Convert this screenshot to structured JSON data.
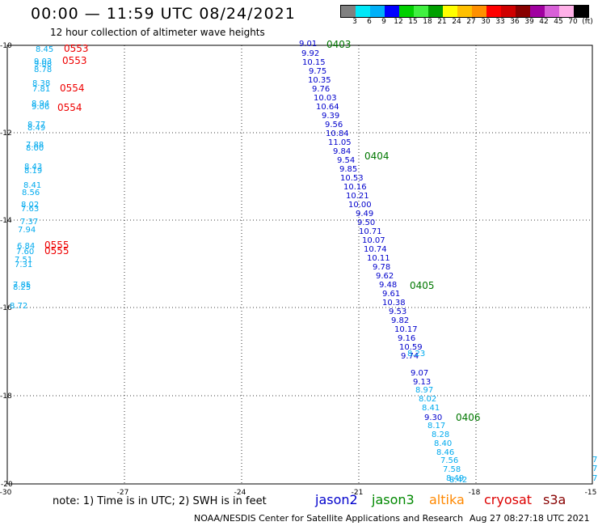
{
  "header": {
    "title": "00:00 — 11:59 UTC 08/24/2021",
    "subtitle": "12 hour collection of altimeter wave heights"
  },
  "colorbar": {
    "colors": [
      "#808080",
      "#00e8f8",
      "#00b0f8",
      "#0000ff",
      "#00d000",
      "#40f040",
      "#00a000",
      "#ffff00",
      "#ffc000",
      "#ff9000",
      "#ff0000",
      "#d00000",
      "#880000",
      "#a000a0",
      "#d860d8",
      "#ffb0e8",
      "#000000"
    ],
    "labels": [
      "3",
      "6",
      "9",
      "12",
      "15",
      "18",
      "21",
      "24",
      "27",
      "30",
      "33",
      "36",
      "39",
      "42",
      "45",
      "70",
      "(ft)"
    ]
  },
  "axes": {
    "x_ticks": [
      "-30",
      "-27",
      "-24",
      "-21",
      "-18",
      "-15"
    ],
    "y_ticks": [
      "-10",
      "-12",
      "-14",
      "-16",
      "-18",
      "-20"
    ]
  },
  "left_track": {
    "values": [
      "8.45",
      "9.03",
      "9.08",
      "8.78",
      "8.38",
      "7.81",
      "8.94",
      "9.06",
      "8.77",
      "8.49",
      "7.88",
      "8.00",
      "8.43",
      "8.19",
      "8.41",
      "8.56",
      "8.02",
      "7.63",
      "7.37",
      "7.94",
      "6.84",
      "7.60",
      "7.51",
      "7.31",
      "7.85",
      "8.25",
      "8.72"
    ],
    "times": [
      "0553",
      "0553",
      "0554",
      "0554",
      "0555",
      "0555"
    ]
  },
  "main_track": {
    "jason2": [
      "9.01",
      "9.92",
      "10.15",
      "9.75",
      "10.35",
      "9.76",
      "10.03",
      "10.64",
      "9.39",
      "9.56",
      "10.84",
      "11.05",
      "9.84",
      "9.54",
      "9.85",
      "10.53",
      "10.16",
      "10.21",
      "10.00",
      "9.49",
      "9.50",
      "10.71",
      "10.07",
      "10.74",
      "10.11",
      "9.78",
      "9.62",
      "9.48",
      "9.61",
      "10.38",
      "9.53",
      "9.82",
      "10.17",
      "9.16",
      "10.59",
      "9.74",
      "9.07",
      "9.13",
      "9.30"
    ],
    "altika": [
      "8.23",
      "8.97",
      "8.02",
      "8.41",
      "8.17",
      "8.28",
      "8.40",
      "8.46",
      "7.56",
      "7.58",
      "8.49",
      "8.42"
    ],
    "times": [
      "0403",
      "0404",
      "0405",
      "0406"
    ]
  },
  "right_edge": [
    "7.",
    "7.",
    "7."
  ],
  "legend": [
    {
      "label": "jason2",
      "color": "#0000cc"
    },
    {
      "label": "jason3",
      "color": "#008800"
    },
    {
      "label": "altika",
      "color": "#ff8800"
    },
    {
      "label": "cryosat",
      "color": "#dd0000"
    },
    {
      "label": "s3a",
      "color": "#880000"
    }
  ],
  "footer": {
    "note": "note:  1) Time is in UTC;  2) SWH is in feet",
    "org": "NOAA/NESDIS Center for Satellite Applications and Research",
    "timestamp": "Aug 27 08:27:18 UTC 2021"
  }
}
